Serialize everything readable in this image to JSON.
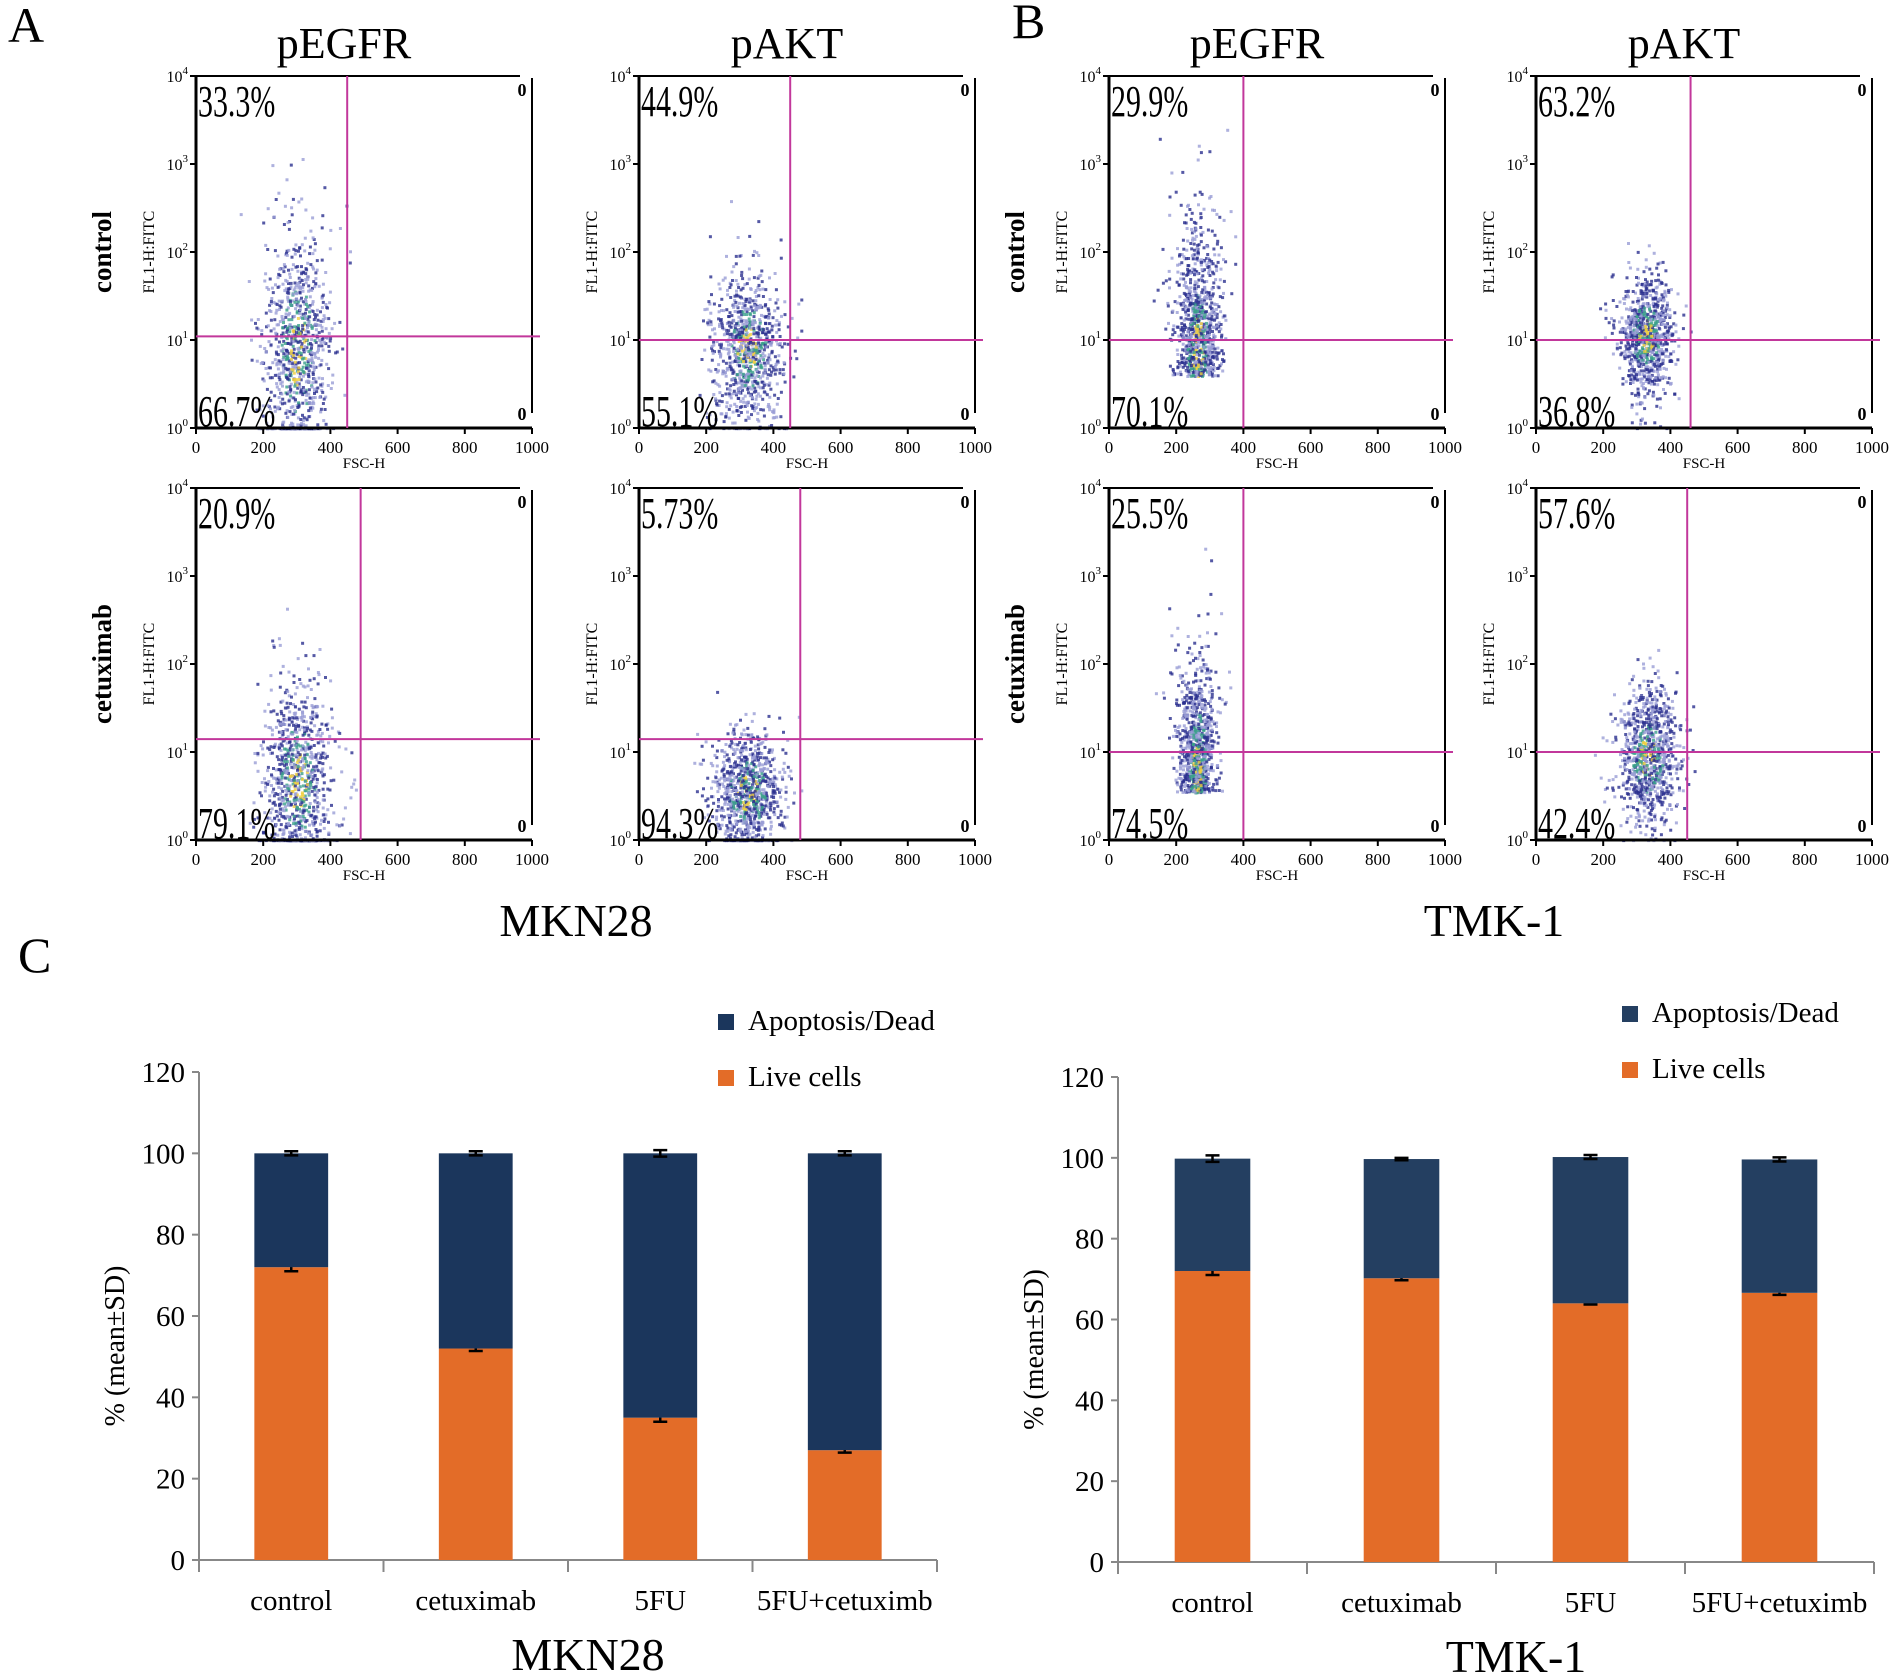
{
  "panel_labels": {
    "a": "A",
    "b": "B",
    "c": "C"
  },
  "flow": {
    "marker_titles": [
      "pEGFR",
      "pAKT"
    ],
    "row_labels": [
      "control",
      "cetuximab"
    ],
    "cell_lines": [
      "MKN28",
      "TMK-1"
    ],
    "x_axis_label": "FSC-H",
    "y_axis_label": "FL1-H:FITC",
    "x_ticks": [
      "0",
      "200",
      "400",
      "600",
      "800",
      "1000"
    ],
    "y_ticks": [
      "10",
      "10",
      "10",
      "10",
      "10"
    ],
    "y_tick_exponents": [
      "0",
      "1",
      "2",
      "3",
      "4"
    ],
    "right_quadrant_label": "0",
    "gate_color": "#c2379b",
    "panels": [
      {
        "cell_line": "MKN28",
        "marker": "pEGFR",
        "treatment": "control",
        "upper_left": "33.3%",
        "lower_left": "66.7%",
        "gate_x": 450,
        "gate_y": 11
      },
      {
        "cell_line": "MKN28",
        "marker": "pAKT",
        "treatment": "control",
        "upper_left": "44.9%",
        "lower_left": "55.1%",
        "gate_x": 450,
        "gate_y": 10
      },
      {
        "cell_line": "TMK-1",
        "marker": "pEGFR",
        "treatment": "control",
        "upper_left": "29.9%",
        "lower_left": "70.1%",
        "gate_x": 400,
        "gate_y": 10
      },
      {
        "cell_line": "TMK-1",
        "marker": "pAKT",
        "treatment": "control",
        "upper_left": "63.2%",
        "lower_left": "36.8%",
        "gate_x": 460,
        "gate_y": 10
      },
      {
        "cell_line": "MKN28",
        "marker": "pEGFR",
        "treatment": "cetuximab",
        "upper_left": "20.9%",
        "lower_left": "79.1%",
        "gate_x": 490,
        "gate_y": 14
      },
      {
        "cell_line": "MKN28",
        "marker": "pAKT",
        "treatment": "cetuximab",
        "upper_left": "5.73%",
        "lower_left": "94.3%",
        "gate_x": 480,
        "gate_y": 14
      },
      {
        "cell_line": "TMK-1",
        "marker": "pEGFR",
        "treatment": "cetuximab",
        "upper_left": "25.5%",
        "lower_left": "74.5%",
        "gate_x": 400,
        "gate_y": 10
      },
      {
        "cell_line": "TMK-1",
        "marker": "pAKT",
        "treatment": "cetuximab",
        "upper_left": "57.6%",
        "lower_left": "42.4%",
        "gate_x": 450,
        "gate_y": 10
      }
    ]
  },
  "chart_data": [
    {
      "type": "bar",
      "stacked": true,
      "title": "MKN28",
      "categories": [
        "control",
        "cetuximab",
        "5FU",
        "5FU+cetuximb"
      ],
      "ylabel": "% (mean±SD)",
      "ylim": [
        0,
        120
      ],
      "yticks": [
        "0",
        "20",
        "40",
        "60",
        "80",
        "100",
        "120"
      ],
      "legend_position": "top-right",
      "series": [
        {
          "name": "Live cells",
          "color": "#e36c28",
          "values": [
            72,
            52,
            35,
            27
          ],
          "errors": [
            1.0,
            0.6,
            1.0,
            0.6
          ]
        },
        {
          "name": "Apoptosis/Dead",
          "color": "#1b365c",
          "values": [
            28,
            48,
            65,
            73
          ],
          "errors": [
            0.5,
            0.5,
            0.8,
            0.5
          ]
        }
      ]
    },
    {
      "type": "bar",
      "stacked": true,
      "title": "TMK-1",
      "categories": [
        "control",
        "cetuximab",
        "5FU",
        "5FU+cetuximb"
      ],
      "ylabel": "% (mean±SD)",
      "ylim": [
        0,
        120
      ],
      "yticks": [
        "0",
        "20",
        "40",
        "60",
        "80",
        "100",
        "120"
      ],
      "legend_position": "top-right",
      "series": [
        {
          "name": "Live cells",
          "color": "#e36c28",
          "values": [
            72,
            70.2,
            64,
            66.6
          ],
          "errors": [
            1.0,
            0.5,
            0.3,
            0.5
          ]
        },
        {
          "name": "Apoptosis/Dead",
          "color": "#243f61",
          "values": [
            27.8,
            29.5,
            36.2,
            33
          ],
          "errors": [
            0.8,
            0.3,
            0.5,
            0.5
          ]
        }
      ]
    }
  ]
}
